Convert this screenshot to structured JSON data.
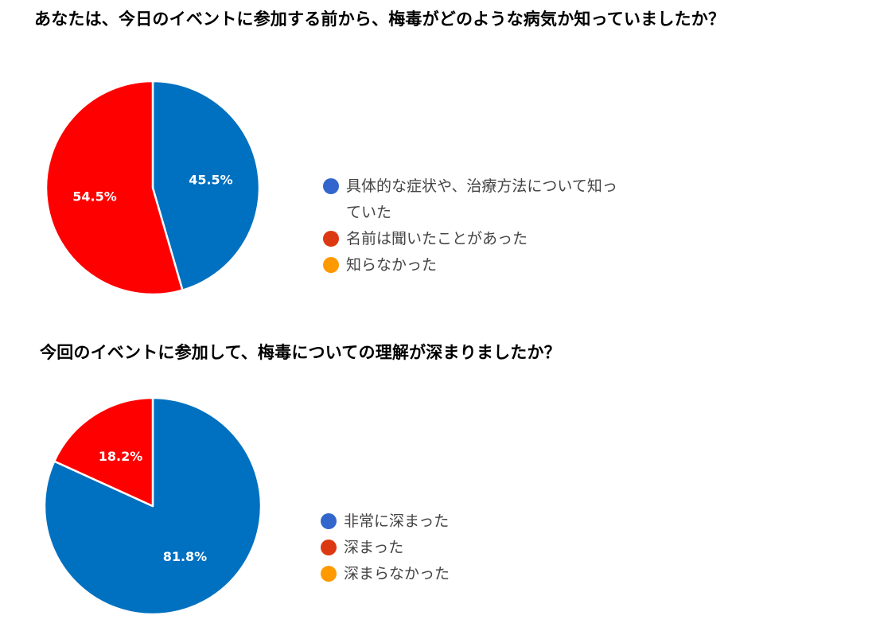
{
  "chart_data": [
    {
      "type": "pie",
      "title": "あなたは、今日のイベントに参加する前から、梅毒がどのような病気か知っていましたか？",
      "legend_position": "right",
      "categories": [
        "具体的な症状や、治療方法について知っていた",
        "名前は聞いたことがあった",
        "知らなかった"
      ],
      "values": [
        45.5,
        54.5,
        0
      ],
      "data_labels": [
        "45.5%",
        "54.5%",
        ""
      ],
      "slice_colors": [
        "#0070c0",
        "#ff0000",
        "#ff9900"
      ],
      "legend_colors": [
        "#3366cc",
        "#dc3912",
        "#ff9900"
      ]
    },
    {
      "type": "pie",
      "title": "今回のイベントに参加して、梅毒についての理解が深まりましたか？",
      "legend_position": "right",
      "categories": [
        "非常に深まった",
        "深まった",
        "深まらなかった"
      ],
      "values": [
        81.8,
        18.2,
        0
      ],
      "data_labels": [
        "81.8%",
        "18.2%",
        ""
      ],
      "slice_colors": [
        "#0070c0",
        "#ff0000",
        "#ff9900"
      ],
      "legend_colors": [
        "#3366cc",
        "#dc3912",
        "#ff9900"
      ]
    }
  ]
}
